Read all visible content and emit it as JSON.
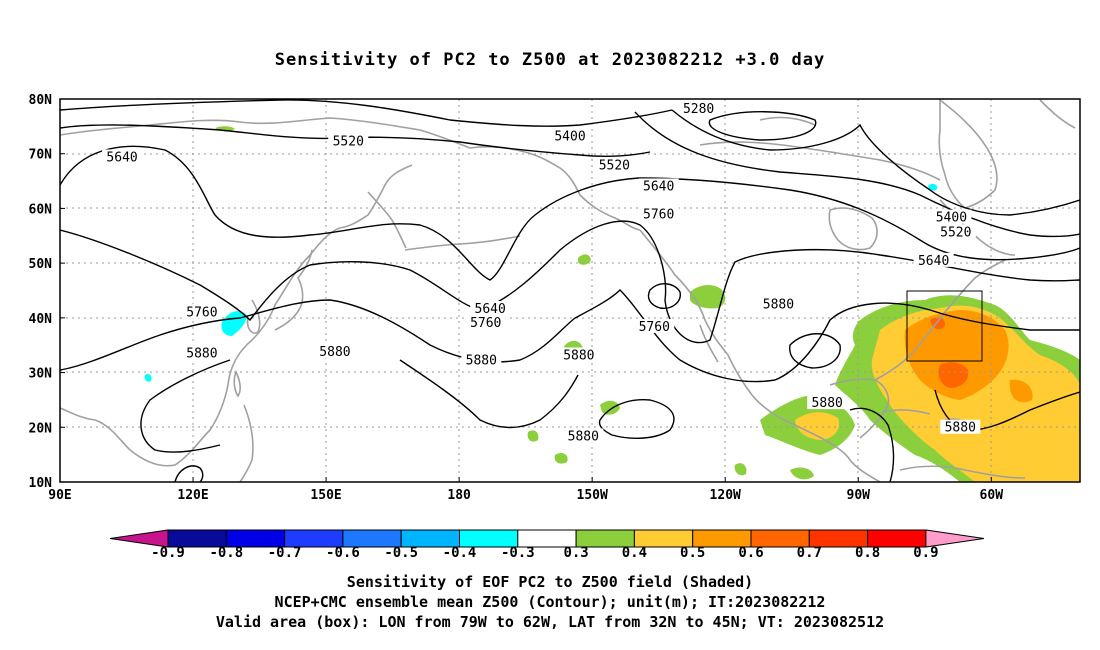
{
  "title": "Sensitivity of PC2 to Z500 at 2023082212 +3.0 day",
  "lon_labels": [
    "90E",
    "120E",
    "150E",
    "180",
    "150W",
    "120W",
    "90W",
    "60W"
  ],
  "lat_labels": [
    "10N",
    "20N",
    "30N",
    "40N",
    "50N",
    "60N",
    "70N",
    "80N"
  ],
  "contour_labels": [
    {
      "text": "5280",
      "lon": -126,
      "lat": 78.4
    },
    {
      "text": "5400",
      "lon": -155,
      "lat": 73.3
    },
    {
      "text": "5520",
      "lon": 155,
      "lat": 72.4
    },
    {
      "text": "5520",
      "lon": -145,
      "lat": 68.0
    },
    {
      "text": "5640",
      "lon": 104,
      "lat": 69.5
    },
    {
      "text": "5640",
      "lon": -135,
      "lat": 64.2
    },
    {
      "text": "5760",
      "lon": -135,
      "lat": 59.1
    },
    {
      "text": "5400",
      "lon": -69,
      "lat": 58.5
    },
    {
      "text": "5520",
      "lon": -68,
      "lat": 55.8
    },
    {
      "text": "5640",
      "lon": -73,
      "lat": 50.6
    },
    {
      "text": "5760",
      "lon": 122,
      "lat": 41.2
    },
    {
      "text": "5880",
      "lon": -108,
      "lat": 42.6
    },
    {
      "text": "5640",
      "lon": -173,
      "lat": 41.8
    },
    {
      "text": "5760",
      "lon": -174,
      "lat": 39.2
    },
    {
      "text": "5760",
      "lon": -136,
      "lat": 38.5
    },
    {
      "text": "5880",
      "lon": 122,
      "lat": 33.7
    },
    {
      "text": "5880",
      "lon": 152,
      "lat": 33.9
    },
    {
      "text": "5880",
      "lon": -175,
      "lat": 32.4
    },
    {
      "text": "5880",
      "lon": -153,
      "lat": 33.3
    },
    {
      "text": "5880",
      "lon": -97,
      "lat": 24.6
    },
    {
      "text": "5880",
      "lon": -152,
      "lat": 18.5
    },
    {
      "text": "5880",
      "lon": -67,
      "lat": 20.1
    }
  ],
  "colorbar": {
    "labels": [
      "-0.9",
      "-0.8",
      "-0.7",
      "-0.6",
      "-0.5",
      "-0.4",
      "-0.3",
      "0.3",
      "0.4",
      "0.5",
      "0.6",
      "0.7",
      "0.8",
      "0.9"
    ],
    "colors": [
      "#0a0a9a",
      "#0000e6",
      "#1e3cff",
      "#1e78ff",
      "#00b4ff",
      "#00ffff",
      "#ffffff",
      "#8ccf3c",
      "#ffcc33",
      "#ff9900",
      "#ff6600",
      "#ff3300",
      "#ff0000"
    ],
    "low_cap_color": "#c8148c",
    "high_cap_color": "#ff9ccc"
  },
  "valid_box": {
    "lon_min": -79,
    "lon_max": -62,
    "lat_min": 32,
    "lat_max": 45
  },
  "captions": [
    "Sensitivity of EOF PC2 to Z500 field (Shaded)",
    "NCEP+CMC ensemble mean Z500 (Contour); unit(m); IT:2023082212",
    "Valid area (box): LON from 79W to 62W, LAT from 32N to 45N; VT: 2023082512"
  ],
  "colors": {
    "coast": "#a0a0a0",
    "contour": "#000000",
    "grid": "#9a9a9a"
  }
}
